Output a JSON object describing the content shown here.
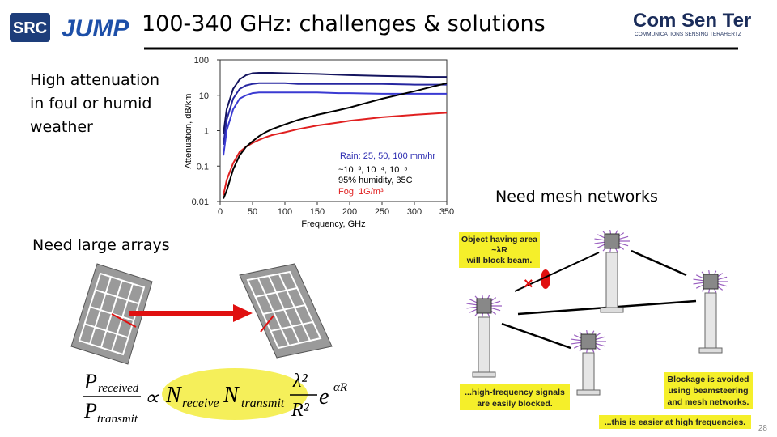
{
  "header": {
    "logo_left": "SRC",
    "logo_jump": "JUMP",
    "title": "100-340 GHz: challenges & solutions",
    "logo_right": "Com Sen Ter",
    "logo_right_tagline": "COMMUNICATIONS SENSING TERAHERTZ"
  },
  "captions": {
    "attenuation": [
      "High attenuation",
      "in foul or humid",
      "weather"
    ],
    "mesh": "Need mesh networks",
    "arrays": "Need large arrays"
  },
  "chart_data": {
    "type": "line",
    "y_label": "Attenuation, dB/km",
    "x_label": "Frequency, GHz",
    "log_y": true,
    "xlim": [
      0,
      350
    ],
    "xticks": [
      0,
      50,
      100,
      150,
      200,
      250,
      300,
      350
    ],
    "ylim": [
      0.01,
      100
    ],
    "yticks": [
      0.01,
      0.1,
      1,
      10,
      100
    ],
    "x": [
      5,
      10,
      20,
      30,
      40,
      50,
      60,
      70,
      80,
      100,
      120,
      150,
      183,
      200,
      250,
      300,
      325,
      350
    ],
    "series": [
      {
        "color": "#14145e",
        "values": [
          0.8,
          4,
          15,
          28,
          37,
          42,
          43,
          43,
          43,
          42,
          41,
          40,
          38,
          37,
          35,
          34,
          33,
          33
        ]
      },
      {
        "color": "#2626a0",
        "values": [
          0.4,
          2,
          8,
          15,
          19,
          21,
          22,
          22,
          22,
          22,
          21,
          21,
          21,
          21,
          21,
          20,
          20,
          20
        ]
      },
      {
        "color": "#3a3ad2",
        "values": [
          0.2,
          1,
          4,
          8,
          10,
          11.5,
          12,
          12,
          12,
          12,
          12,
          12,
          11.5,
          11.5,
          11,
          11,
          11,
          11
        ]
      },
      {
        "color": "#e02020",
        "values": [
          0.015,
          0.04,
          0.12,
          0.25,
          0.35,
          0.45,
          0.55,
          0.65,
          0.75,
          0.9,
          1.1,
          1.4,
          1.7,
          1.9,
          2.4,
          2.8,
          3,
          3.2
        ]
      },
      {
        "color": "#000000",
        "values": [
          0.012,
          0.02,
          0.08,
          0.2,
          0.35,
          0.5,
          0.7,
          0.9,
          1.1,
          1.5,
          2,
          2.8,
          3.8,
          4.5,
          8,
          13,
          17,
          22
        ]
      }
    ],
    "annotations": [
      {
        "text": "Rain: 25, 50, 100 mm/hr",
        "color": "#2a2ab0"
      },
      {
        "text": "~10⁻³, 10⁻⁴, 10⁻⁵",
        "color": "#000000"
      },
      {
        "text": "95% humidity, 35C",
        "color": "#000000"
      },
      {
        "text": "Fog, 1G/m³",
        "color": "#e02020"
      }
    ]
  },
  "formula": {
    "received": "P",
    "received_sub": "received",
    "transmit": "P",
    "transmit_sub": "transmit",
    "prop": "∝",
    "n1": "N",
    "n1_sub": "receive",
    "n2": "N",
    "n2_sub": "transmit",
    "lambda": "λ²",
    "r": "R²",
    "e": "e",
    "exp": "αR"
  },
  "mesh_diagram": {
    "callout_object": [
      "Object having area",
      "~λR",
      "will block beam."
    ],
    "callout_blocked": [
      "...high-frequency signals",
      "are easily blocked."
    ],
    "callout_avoided": [
      "Blockage is avoided",
      "using beamsteering",
      "and mesh networks."
    ],
    "callout_easier": "...this is easier at high frequencies."
  },
  "page_number": "28"
}
